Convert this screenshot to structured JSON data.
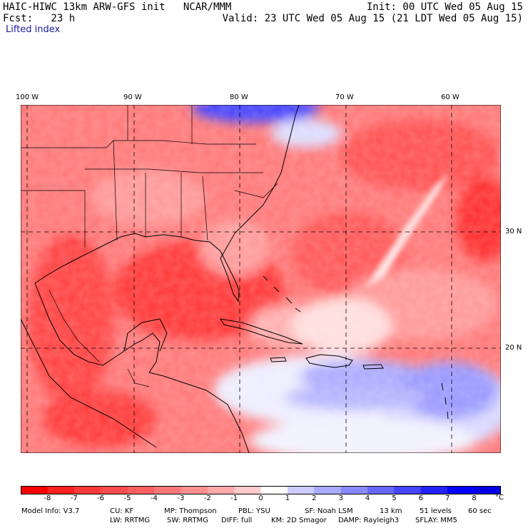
{
  "header": {
    "line1_left": "HAIC-HIWC 13km ARW-GFS init   NCAR/MMM",
    "line1_right": "Init: 00 UTC Wed 05 Aug 15",
    "line2_left": "Fcst:   23 h",
    "line2_right": "Valid: 23 UTC Wed 05 Aug 15 (21 LDT Wed 05 Aug 15)",
    "field_name": "Lifted index"
  },
  "map": {
    "lon_labels": [
      "100 W",
      "90 W",
      "80 W",
      "70 W",
      "60 W"
    ],
    "lat_labels": [
      "30 N",
      "20 N"
    ]
  },
  "colorbar": {
    "ticks": [
      "-8",
      "-7",
      "-6",
      "-5",
      "-4",
      "-3",
      "-2",
      "-1",
      "0",
      "1",
      "2",
      "3",
      "4",
      "5",
      "6",
      "7",
      "8"
    ],
    "unit": "°C",
    "colors": [
      "#ff0000",
      "#ff2020",
      "#ff3838",
      "#ff4c4c",
      "#ff6060",
      "#ff7878",
      "#ff9090",
      "#ffaaaa",
      "#ffcaca",
      "#ffffff",
      "#ccccff",
      "#aaaaff",
      "#8888ff",
      "#6666ff",
      "#4444ff",
      "#2222ff",
      "#0000ff",
      "#0000e0"
    ]
  },
  "model_info": {
    "row1": [
      "Model Info: V3.7",
      "CU: KF",
      "MP: Thompson",
      "PBL: YSU",
      "SF: Noah LSM",
      "13 km",
      "51 levels",
      "60 sec"
    ],
    "row2": [
      "LW: RRTMG",
      "SW: RRTMG",
      "DIFF: full",
      "KM: 2D Smagor",
      "DAMP: Rayleigh3",
      "SFLAY: MM5"
    ]
  }
}
